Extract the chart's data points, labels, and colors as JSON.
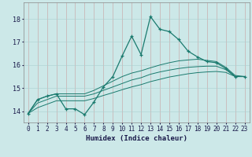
{
  "xlabel": "Humidex (Indice chaleur)",
  "bg_color": "#cce8e8",
  "grid_color": "#aad0d0",
  "line_color": "#1a7a6e",
  "xlim": [
    -0.5,
    23.5
  ],
  "ylim": [
    13.5,
    18.7
  ],
  "yticks": [
    14,
    15,
    16,
    17,
    18
  ],
  "xticks": [
    0,
    1,
    2,
    3,
    4,
    5,
    6,
    7,
    8,
    9,
    10,
    11,
    12,
    13,
    14,
    15,
    16,
    17,
    18,
    19,
    20,
    21,
    22,
    23
  ],
  "x_main": [
    0,
    1,
    2,
    3,
    4,
    5,
    6,
    7,
    8,
    9,
    10,
    11,
    12,
    13,
    14,
    15,
    16,
    17,
    18,
    19,
    20,
    21,
    22,
    23
  ],
  "y_main": [
    13.9,
    14.5,
    14.65,
    14.75,
    14.1,
    14.1,
    13.85,
    14.4,
    15.05,
    15.5,
    16.4,
    17.25,
    16.45,
    18.1,
    17.55,
    17.45,
    17.1,
    16.6,
    16.35,
    16.15,
    16.1,
    15.85,
    15.5,
    15.5
  ],
  "y_line2": [
    13.9,
    14.5,
    14.65,
    14.75,
    14.75,
    14.75,
    14.75,
    14.9,
    15.1,
    15.3,
    15.5,
    15.65,
    15.75,
    15.88,
    16.0,
    16.1,
    16.18,
    16.22,
    16.25,
    16.2,
    16.15,
    15.9,
    15.55,
    15.5
  ],
  "y_line3": [
    13.9,
    14.35,
    14.5,
    14.65,
    14.65,
    14.65,
    14.65,
    14.75,
    14.9,
    15.05,
    15.2,
    15.35,
    15.45,
    15.6,
    15.7,
    15.78,
    15.85,
    15.9,
    15.93,
    15.95,
    15.95,
    15.8,
    15.5,
    15.5
  ],
  "y_line4": [
    13.9,
    14.15,
    14.3,
    14.45,
    14.45,
    14.45,
    14.45,
    14.55,
    14.68,
    14.8,
    14.93,
    15.05,
    15.15,
    15.28,
    15.38,
    15.48,
    15.55,
    15.62,
    15.67,
    15.7,
    15.72,
    15.68,
    15.5,
    15.5
  ]
}
